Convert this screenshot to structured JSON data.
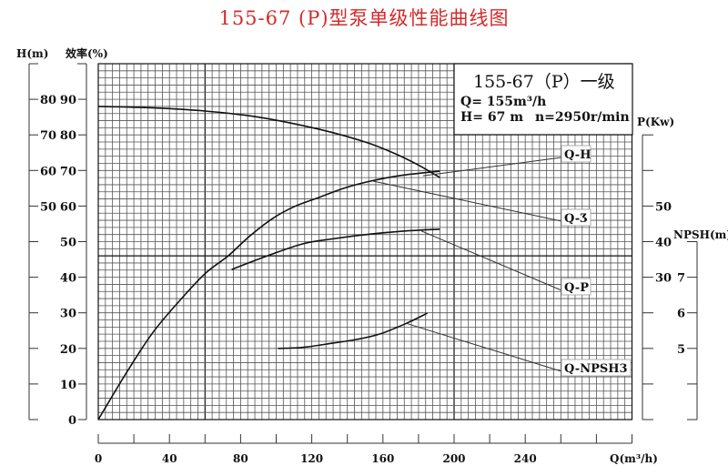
{
  "title": "155-67 (P)型泵单级性能曲线图",
  "info_box": {
    "model": "155-67（P）一级",
    "flow": "Q= 155m³/h",
    "head": "H= 67 m",
    "speed": "n=2950r/min"
  },
  "chart_data": {
    "type": "line",
    "title": "155-67 (P)型泵单级性能曲线图",
    "grid": true,
    "x_axis": {
      "label": "Q(m³/h)",
      "range": [
        0,
        300
      ],
      "ticks": [
        "0",
        "40",
        "80",
        "120",
        "160",
        "200",
        "240"
      ],
      "minor_tick_step": 20
    },
    "y_axes": [
      {
        "id": "H",
        "label": "H(m)",
        "ticks": [
          "80",
          "70",
          "60",
          "50"
        ],
        "side": "left-outer"
      },
      {
        "id": "eff",
        "label": "效率(%)",
        "range": [
          0,
          100
        ],
        "ticks": [
          "90",
          "80",
          "70",
          "60",
          "50",
          "40",
          "30",
          "20",
          "10",
          "0"
        ],
        "side": "left-inner"
      },
      {
        "id": "P",
        "label": "P(Kw)",
        "ticks": [
          "50",
          "40",
          "30"
        ],
        "side": "right-inner"
      },
      {
        "id": "NPSH",
        "label": "NPSH(m)",
        "ticks": [
          "7",
          "6",
          "5"
        ],
        "side": "right-outer"
      }
    ],
    "series": [
      {
        "name": "Q-H",
        "axis": "H",
        "x": [
          0,
          30,
          60,
          90,
          124,
          150,
          166,
          180,
          192
        ],
        "y": [
          78,
          77.6,
          76.7,
          75,
          71.6,
          68,
          64.9,
          61.5,
          58
        ]
      },
      {
        "name": "Q-η",
        "axis": "eff",
        "x": [
          0,
          15,
          30,
          45,
          60,
          73,
          85,
          98,
          110,
          124,
          138,
          153,
          170,
          192
        ],
        "y": [
          0,
          12.5,
          24,
          33,
          41,
          46,
          51.5,
          56.5,
          59.8,
          62.4,
          65,
          67,
          68.6,
          69.8
        ]
      },
      {
        "name": "Q-P",
        "axis": "P",
        "x": [
          75,
          95,
          115,
          132,
          149,
          170,
          192
        ],
        "y": [
          32.2,
          36,
          39.4,
          40.8,
          41.9,
          42.9,
          43.5
        ]
      },
      {
        "name": "Q-NPSH3",
        "axis": "NPSH",
        "x": [
          101,
          115,
          132,
          145,
          158,
          173,
          185
        ],
        "y": [
          5.0,
          5.03,
          5.15,
          5.25,
          5.4,
          5.7,
          5.99
        ]
      }
    ],
    "curve_labels": [
      "Q-H",
      "Q-Ʒ",
      "Q-P",
      "Q-NPSH3"
    ]
  }
}
